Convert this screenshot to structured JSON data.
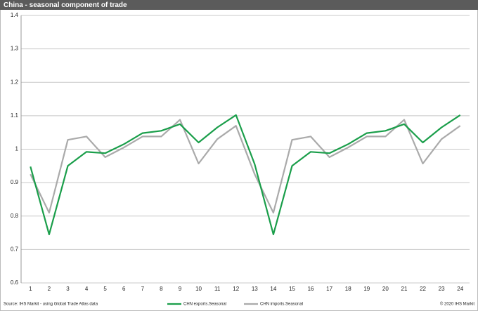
{
  "chart_data": {
    "type": "line",
    "title": "China - seasonal component of trade",
    "source": "Source: IHS Markit - using Global Trade Atlas data",
    "copyright": "© 2020 IHS Markit",
    "categories": [
      "1",
      "2",
      "3",
      "4",
      "5",
      "6",
      "7",
      "8",
      "9",
      "10",
      "11",
      "12",
      "13",
      "14",
      "15",
      "16",
      "17",
      "18",
      "19",
      "20",
      "21",
      "22",
      "23",
      "24"
    ],
    "series": [
      {
        "name": "CHN exports.Seasonal",
        "color": "#1a9e4a",
        "values": [
          0.948,
          0.745,
          0.95,
          0.992,
          0.988,
          1.015,
          1.048,
          1.055,
          1.075,
          1.02,
          1.065,
          1.102,
          0.955,
          0.745,
          0.95,
          0.992,
          0.988,
          1.015,
          1.048,
          1.055,
          1.075,
          1.02,
          1.065,
          1.102
        ]
      },
      {
        "name": "CHN imports.Seasonal",
        "color": "#aaaaaa",
        "values": [
          0.925,
          0.81,
          1.028,
          1.038,
          0.976,
          1.005,
          1.038,
          1.038,
          1.088,
          0.957,
          1.03,
          1.07,
          0.925,
          0.81,
          1.028,
          1.038,
          0.976,
          1.005,
          1.038,
          1.038,
          1.088,
          0.957,
          1.03,
          1.07
        ]
      }
    ],
    "ylim": [
      0.6,
      1.4
    ],
    "yticks": [
      0.6,
      0.7,
      0.8,
      0.9,
      1,
      1.1,
      1.2,
      1.3,
      1.4
    ],
    "grid": true
  }
}
